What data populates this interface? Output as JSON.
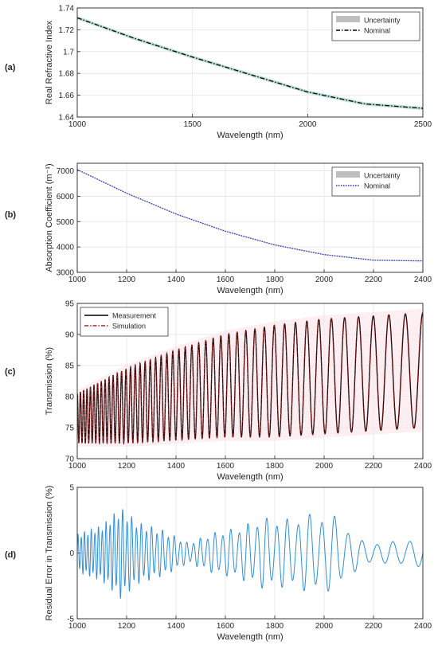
{
  "panels": [
    {
      "label": "(a)"
    },
    {
      "label": "(b)"
    },
    {
      "label": "(c)"
    },
    {
      "label": "(d)"
    }
  ],
  "chart_data": [
    {
      "type": "line",
      "panel": "(a)",
      "xlabel": "Wavelength (nm)",
      "ylabel": "Real Refractive Index",
      "xlim": [
        1000,
        2500
      ],
      "ylim": [
        1.64,
        1.74
      ],
      "xticks": [
        1000,
        1500,
        2000,
        2500
      ],
      "yticks": [
        1.64,
        1.66,
        1.68,
        1.7,
        1.72,
        1.74
      ],
      "grid": true,
      "legend_position": "top-right",
      "series": [
        {
          "name": "Uncertainty",
          "style": "band",
          "color": "#bfbfbf",
          "half_width": 0.0015,
          "x": [
            1000,
            1250,
            1500,
            1750,
            2000,
            2250,
            2500
          ],
          "y": [
            1.731,
            1.712,
            1.695,
            1.679,
            1.663,
            1.652,
            1.648
          ]
        },
        {
          "name": "Nominal",
          "style": "dash-dot",
          "color": "#000000",
          "x": [
            1000,
            1250,
            1500,
            1750,
            2000,
            2250,
            2500
          ],
          "y": [
            1.731,
            1.712,
            1.695,
            1.679,
            1.663,
            1.652,
            1.648
          ]
        }
      ]
    },
    {
      "type": "line",
      "panel": "(b)",
      "xlabel": "Wavelength (nm)",
      "ylabel": "Absorption Coefficient (m⁻¹)",
      "xlim": [
        1000,
        2400
      ],
      "ylim": [
        3000,
        7300
      ],
      "xticks": [
        1000,
        1200,
        1400,
        1600,
        1800,
        2000,
        2200,
        2400
      ],
      "yticks": [
        3000,
        4000,
        5000,
        6000,
        7000
      ],
      "grid": true,
      "legend_position": "top-right",
      "series": [
        {
          "name": "Uncertainty",
          "style": "band",
          "color": "#bfbfbf",
          "half_width": 20,
          "x": [
            1000,
            1200,
            1400,
            1600,
            1800,
            2000,
            2200,
            2400
          ],
          "y": [
            7050,
            6120,
            5300,
            4620,
            4080,
            3700,
            3480,
            3450
          ]
        },
        {
          "name": "Nominal",
          "style": "dotted",
          "color": "#1f2fd1",
          "x": [
            1000,
            1200,
            1400,
            1600,
            1800,
            2000,
            2200,
            2400
          ],
          "y": [
            7050,
            6120,
            5300,
            4620,
            4080,
            3700,
            3480,
            3450
          ]
        }
      ]
    },
    {
      "type": "line",
      "panel": "(c)",
      "xlabel": "Wavelength (nm)",
      "ylabel": "Transmission (%)",
      "xlim": [
        1000,
        2400
      ],
      "ylim": [
        70,
        95
      ],
      "xticks": [
        1000,
        1200,
        1400,
        1600,
        1800,
        2000,
        2200,
        2400
      ],
      "yticks": [
        70,
        75,
        80,
        85,
        90,
        95
      ],
      "grid": true,
      "legend_position": "top-left",
      "fringe_count": 46,
      "series": [
        {
          "name": "Measurement",
          "style": "solid",
          "color": "#000000",
          "x": [
            1000,
            1200,
            1400,
            1600,
            1800,
            2000,
            2200,
            2400
          ],
          "upper": [
            80.5,
            84.5,
            87.5,
            90,
            91.5,
            92.5,
            93,
            93.5
          ],
          "lower": [
            72.5,
            72.5,
            73,
            73.5,
            73.5,
            74,
            74.5,
            75
          ]
        },
        {
          "name": "Simulation",
          "style": "dash-dot",
          "color": "#b22222",
          "x": [
            1000,
            1200,
            1400,
            1600,
            1800,
            2000,
            2200,
            2400
          ],
          "upper": [
            80.5,
            84.5,
            87.5,
            90,
            91.5,
            92.5,
            93,
            93.5
          ],
          "lower": [
            72.5,
            72.5,
            73,
            73.5,
            73.5,
            74,
            74.5,
            75
          ]
        }
      ]
    },
    {
      "type": "line",
      "panel": "(d)",
      "xlabel": "Wavelength (nm)",
      "ylabel": "Residual Error in Transmission (%)",
      "xlim": [
        1000,
        2400
      ],
      "ylim": [
        -5,
        5
      ],
      "xticks": [
        1000,
        1200,
        1400,
        1600,
        1800,
        2000,
        2200,
        2400
      ],
      "yticks": [
        -5,
        0,
        5
      ],
      "grid": true,
      "fringe_count": 46,
      "series": [
        {
          "name": "",
          "style": "solid",
          "color": "#2f8fd8",
          "x": [
            1000,
            1100,
            1175,
            1250,
            1350,
            1450,
            1550,
            1650,
            1750,
            1850,
            1970,
            2050,
            2150,
            2250,
            2350,
            2400
          ],
          "amplitude": [
            1.5,
            2.2,
            3.6,
            2.4,
            1.8,
            0.8,
            1.6,
            2.0,
            2.8,
            2.7,
            3.2,
            2.9,
            1.0,
            0.8,
            1.2,
            1.0
          ]
        }
      ]
    }
  ]
}
